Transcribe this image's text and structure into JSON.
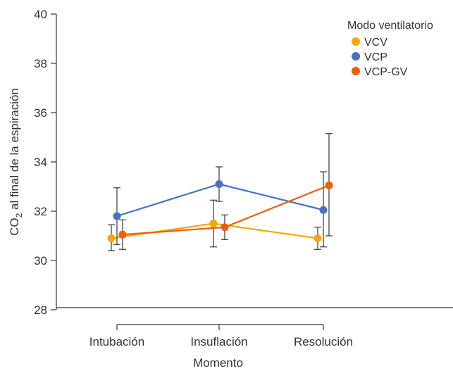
{
  "chart_data": {
    "type": "line",
    "xlabel": "Momento",
    "ylabel": {
      "prefix": "CO",
      "subscript": "2",
      "suffix": " al final de la espiración"
    },
    "categories": [
      "Intubación",
      "Insuflación",
      "Resolución"
    ],
    "ylim": [
      28,
      40
    ],
    "yticks": [
      28,
      30,
      32,
      34,
      36,
      38,
      40
    ],
    "grid": false,
    "legend": {
      "title": "Modo ventilatorio",
      "placement": "top-right"
    },
    "series": [
      {
        "name": "VCV",
        "color": "#F5A800",
        "values": [
          30.9,
          31.5,
          30.9
        ],
        "err_low": [
          30.4,
          30.55,
          30.45
        ],
        "err_high": [
          31.45,
          32.45,
          31.35
        ]
      },
      {
        "name": "VCP",
        "color": "#4472C4",
        "values": [
          31.8,
          33.1,
          32.05
        ],
        "err_low": [
          30.65,
          32.4,
          30.55
        ],
        "err_high": [
          32.95,
          33.8,
          33.6
        ]
      },
      {
        "name": "VCP-GV",
        "color": "#EB5E0B",
        "values": [
          31.05,
          31.35,
          33.05
        ],
        "err_low": [
          30.45,
          30.85,
          31.0
        ],
        "err_high": [
          31.65,
          31.85,
          35.15
        ]
      }
    ]
  }
}
